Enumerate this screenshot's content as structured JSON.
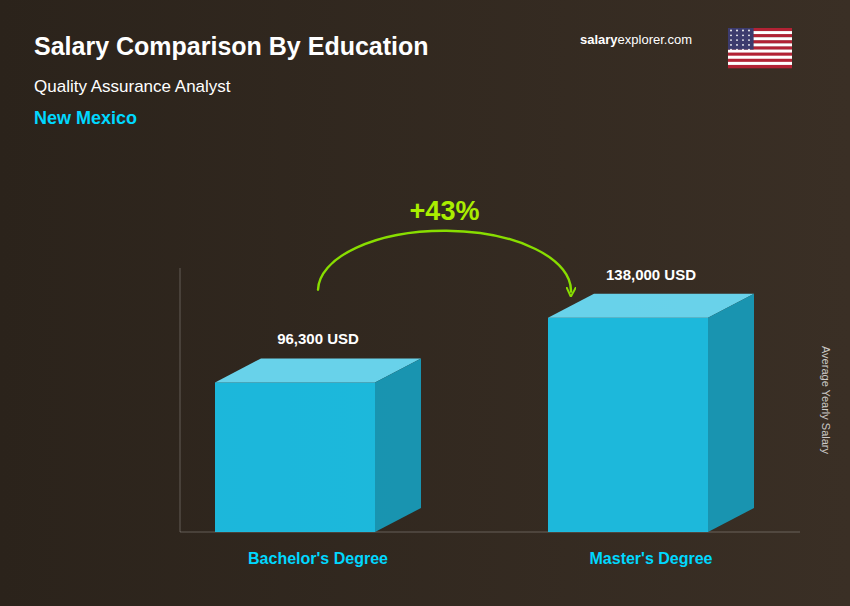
{
  "chart_data": {
    "type": "bar",
    "title": "Salary Comparison By Education",
    "subtitle": [
      "Quality Assurance Analyst",
      "New Mexico"
    ],
    "ylabel": "Average Yearly Salary",
    "categories": [
      "Bachelor's Degree",
      "Master's Degree"
    ],
    "values": [
      96300,
      138000
    ],
    "value_labels": [
      "96,300 USD",
      "138,000 USD"
    ],
    "data_labels": true,
    "color": "#1BC8F0",
    "ylim": [
      0,
      170000
    ],
    "tick_labels": false,
    "grid": false,
    "annotations": [
      "+43%",
      "salary",
      "explorer.com"
    ]
  }
}
